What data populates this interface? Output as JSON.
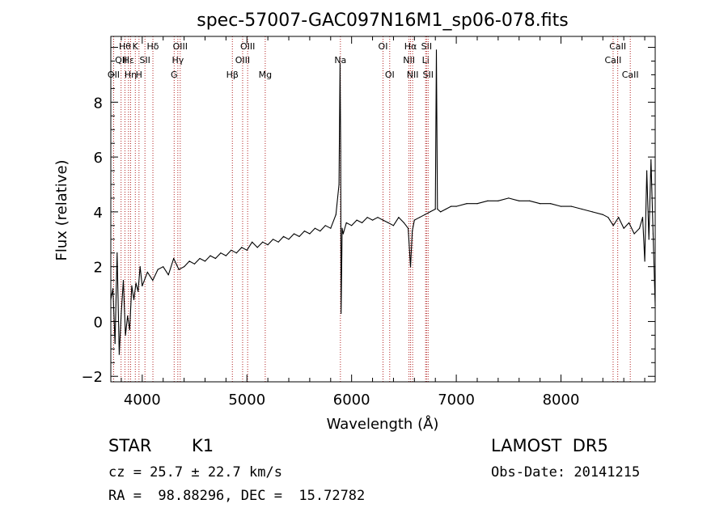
{
  "chart_data": {
    "type": "line",
    "title": "spec-57007-GAC097N16M1_sp06-078.fits",
    "xlabel": "Wavelength (Å)",
    "ylabel": "Flux (relative)",
    "xlim": [
      3700,
      8900
    ],
    "ylim": [
      -2.2,
      10.4
    ],
    "xticks": [
      4000,
      5000,
      6000,
      7000,
      8000
    ],
    "yticks": [
      -2,
      0,
      2,
      4,
      6,
      8
    ],
    "grid": false,
    "series": [
      {
        "name": "",
        "color": "#000000",
        "x": [
          3700,
          3720,
          3740,
          3760,
          3780,
          3800,
          3820,
          3840,
          3860,
          3880,
          3900,
          3920,
          3940,
          3960,
          3980,
          4000,
          4050,
          4100,
          4150,
          4200,
          4250,
          4300,
          4350,
          4400,
          4450,
          4500,
          4550,
          4600,
          4650,
          4700,
          4750,
          4800,
          4850,
          4900,
          4950,
          5000,
          5050,
          5100,
          5150,
          5200,
          5250,
          5300,
          5350,
          5400,
          5450,
          5500,
          5550,
          5600,
          5650,
          5700,
          5750,
          5800,
          5850,
          5880,
          5890,
          5896,
          5900,
          5910,
          5920,
          5950,
          6000,
          6050,
          6100,
          6150,
          6200,
          6250,
          6300,
          6350,
          6400,
          6450,
          6500,
          6540,
          6563,
          6580,
          6600,
          6650,
          6700,
          6750,
          6800,
          6810,
          6820,
          6850,
          6900,
          6950,
          7000,
          7100,
          7200,
          7300,
          7400,
          7500,
          7600,
          7700,
          7800,
          7900,
          8000,
          8100,
          8200,
          8300,
          8400,
          8450,
          8500,
          8550,
          8600,
          8650,
          8700,
          8750,
          8780,
          8800,
          8820,
          8840,
          8860,
          8880,
          8900
        ],
        "y": [
          0.8,
          1.2,
          -0.8,
          2.5,
          -1.2,
          0.3,
          1.5,
          -0.5,
          0.2,
          -0.3,
          1.3,
          0.8,
          1.4,
          1.1,
          2.0,
          1.3,
          1.8,
          1.5,
          1.9,
          2.0,
          1.7,
          2.3,
          1.9,
          2.0,
          2.2,
          2.1,
          2.3,
          2.2,
          2.4,
          2.3,
          2.5,
          2.4,
          2.6,
          2.5,
          2.7,
          2.6,
          2.9,
          2.7,
          2.9,
          2.8,
          3.0,
          2.9,
          3.1,
          3.0,
          3.2,
          3.1,
          3.3,
          3.2,
          3.4,
          3.3,
          3.5,
          3.4,
          3.9,
          5.0,
          9.4,
          6.2,
          0.3,
          3.4,
          3.2,
          3.6,
          3.5,
          3.7,
          3.6,
          3.8,
          3.7,
          3.8,
          3.7,
          3.6,
          3.5,
          3.8,
          3.6,
          3.4,
          2.0,
          3.3,
          3.7,
          3.8,
          3.9,
          4.0,
          4.1,
          9.9,
          4.1,
          4.0,
          4.1,
          4.2,
          4.2,
          4.3,
          4.3,
          4.4,
          4.4,
          4.5,
          4.4,
          4.4,
          4.3,
          4.3,
          4.2,
          4.2,
          4.1,
          4.0,
          3.9,
          3.8,
          3.5,
          3.8,
          3.4,
          3.6,
          3.2,
          3.4,
          3.8,
          2.2,
          5.5,
          3.0,
          5.9,
          3.2,
          0.6
        ]
      }
    ],
    "lines": [
      {
        "x": 3727,
        "label": "OII",
        "row": 3
      },
      {
        "x": 3798,
        "label": "QII",
        "row": 2
      },
      {
        "x": 3835,
        "label": "Hθ",
        "row": 1
      },
      {
        "x": 3869,
        "label": "Hε",
        "row": 2
      },
      {
        "x": 3889,
        "label": "Hη",
        "row": 3
      },
      {
        "x": 3934,
        "label": "K",
        "row": 1
      },
      {
        "x": 3969,
        "label": "H",
        "row": 3
      },
      {
        "x": 4026,
        "label": "SII",
        "row": 2
      },
      {
        "x": 4102,
        "label": "Hδ",
        "row": 1
      },
      {
        "x": 4305,
        "label": "G",
        "row": 3
      },
      {
        "x": 4340,
        "label": "Hγ",
        "row": 2
      },
      {
        "x": 4363,
        "label": "OIII",
        "row": 1
      },
      {
        "x": 4861,
        "label": "Hβ",
        "row": 3
      },
      {
        "x": 4959,
        "label": "OIII",
        "row": 2
      },
      {
        "x": 5007,
        "label": "OIII",
        "row": 1
      },
      {
        "x": 5175,
        "label": "Mg",
        "row": 3
      },
      {
        "x": 5893,
        "label": "Na",
        "row": 2
      },
      {
        "x": 6300,
        "label": "OI",
        "row": 1
      },
      {
        "x": 6364,
        "label": "OI",
        "row": 3
      },
      {
        "x": 6548,
        "label": "NII",
        "row": 2
      },
      {
        "x": 6563,
        "label": "Hα",
        "row": 1
      },
      {
        "x": 6583,
        "label": "NII",
        "row": 3
      },
      {
        "x": 6707,
        "label": "Li",
        "row": 2
      },
      {
        "x": 6716,
        "label": "SII",
        "row": 1
      },
      {
        "x": 6731,
        "label": "SII",
        "row": 3
      },
      {
        "x": 8498,
        "label": "CaII",
        "row": 2
      },
      {
        "x": 8542,
        "label": "CaII",
        "row": 1
      },
      {
        "x": 8662,
        "label": "CaII",
        "row": 3
      }
    ],
    "line_marker_color": "#b22222"
  },
  "info": {
    "object_class": "STAR",
    "subclass": "K1",
    "survey": "LAMOST  DR5",
    "redshift": "cz = 25.7 ± 22.7 km/s",
    "obs_date": "Obs-Date: 20141215",
    "coords": "RA =  98.88296, DEC =  15.72782"
  }
}
